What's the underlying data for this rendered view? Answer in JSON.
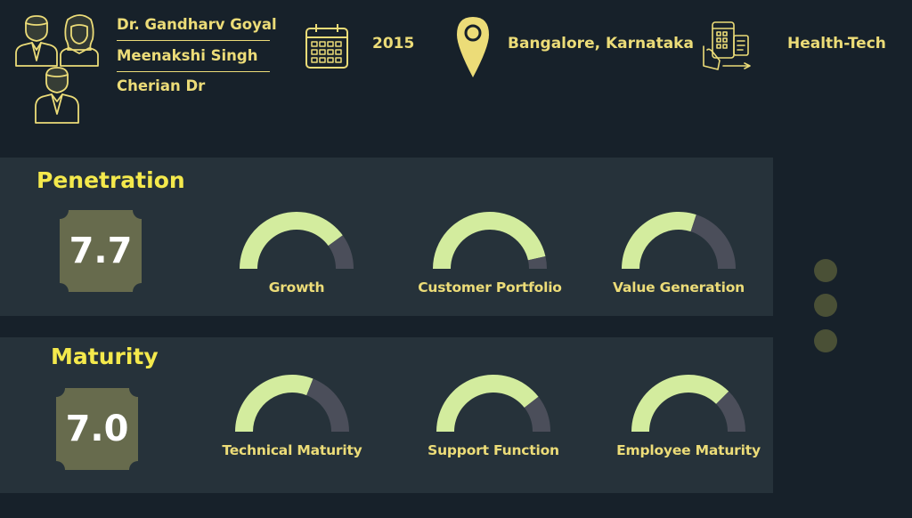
{
  "header": {
    "founders": [
      "Dr. Gandharv Goyal",
      "Meenakshi Singh",
      "Cherian Dr"
    ],
    "founded_year": "2015",
    "location": "Bangalore, Karnataka",
    "sector": "Health-Tech",
    "icons": [
      "founders-icon",
      "calendar-icon",
      "location-pin-icon",
      "health-tech-icon"
    ]
  },
  "sections": [
    {
      "title": "Penetration",
      "score": "7.7",
      "gauges": [
        {
          "label": "Growth",
          "value": 0.8
        },
        {
          "label": "Customer Portfolio",
          "value": 0.93
        },
        {
          "label": "Value Generation",
          "value": 0.6
        }
      ]
    },
    {
      "title": "Maturity",
      "score": "7.0",
      "gauges": [
        {
          "label": "Technical Maturity",
          "value": 0.62
        },
        {
          "label": "Support Function",
          "value": 0.79
        },
        {
          "label": "Employee Maturity",
          "value": 0.75
        }
      ]
    }
  ],
  "pagination": {
    "dots": 3
  },
  "colors": {
    "background": "#17212a",
    "panel": "#26323a",
    "accent_text": "#ecdc78",
    "title": "#f4e94c",
    "gauge_fill": "#d3ec9e",
    "gauge_track": "#4b4e5a",
    "score_box": "#676b4d",
    "dot": "#4a5036"
  }
}
